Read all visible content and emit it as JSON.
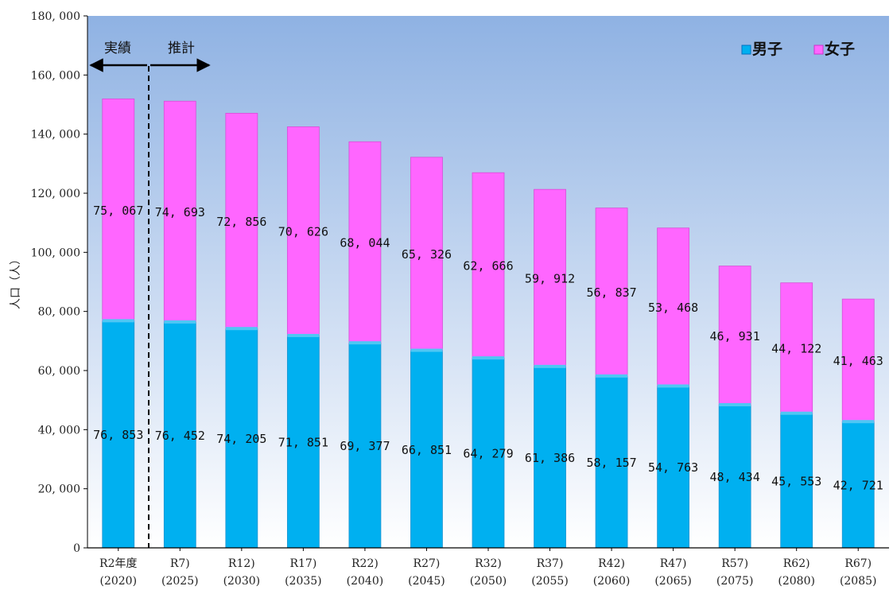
{
  "chart_data": {
    "type": "bar",
    "stacked": true,
    "ylabel": "人口（人）",
    "ylim": [
      0,
      180000
    ],
    "ytick_step": 20000,
    "ytick_labels": [
      "0",
      "20, 000",
      "40, 000",
      "60, 000",
      "80, 000",
      "100, 000",
      "120, 000",
      "140, 000",
      "160, 000",
      "180, 000"
    ],
    "legend_position": "top-right",
    "categories": [
      [
        "R2年度",
        "(2020)"
      ],
      [
        "R7)",
        "(2025)"
      ],
      [
        "R12)",
        "(2030)"
      ],
      [
        "R17)",
        "(2035)"
      ],
      [
        "R22)",
        "(2040)"
      ],
      [
        "R27)",
        "(2045)"
      ],
      [
        "R32)",
        "(2050)"
      ],
      [
        "R37)",
        "(2055)"
      ],
      [
        "R42)",
        "(2060)"
      ],
      [
        "R47)",
        "(2065)"
      ],
      [
        "R57)",
        "(2075)"
      ],
      [
        "R62)",
        "(2080)"
      ],
      [
        "R67)",
        "(2085)"
      ]
    ],
    "series": [
      {
        "name": "男子",
        "color": "#00b0f0",
        "values": [
          76853,
          76452,
          74205,
          71851,
          69377,
          66851,
          64279,
          61386,
          58157,
          54763,
          48434,
          45553,
          42721
        ],
        "labels": [
          "76, 853",
          "76, 452",
          "74, 205",
          "71, 851",
          "69, 377",
          "66, 851",
          "64, 279",
          "61, 386",
          "58, 157",
          "54, 763",
          "48, 434",
          "45, 553",
          "42, 721"
        ]
      },
      {
        "name": "女子",
        "color": "#ff66ff",
        "values": [
          75067,
          74693,
          72856,
          70626,
          68044,
          65326,
          62666,
          59912,
          56837,
          53468,
          46931,
          44122,
          41463
        ],
        "labels": [
          "75, 067",
          "74, 693",
          "72, 856",
          "70, 626",
          "68, 044",
          "65, 326",
          "62, 666",
          "59, 912",
          "56, 837",
          "53, 468",
          "46, 931",
          "44, 122",
          "41, 463"
        ]
      }
    ],
    "annotations": {
      "actual": "実績",
      "estimate": "推計"
    }
  }
}
